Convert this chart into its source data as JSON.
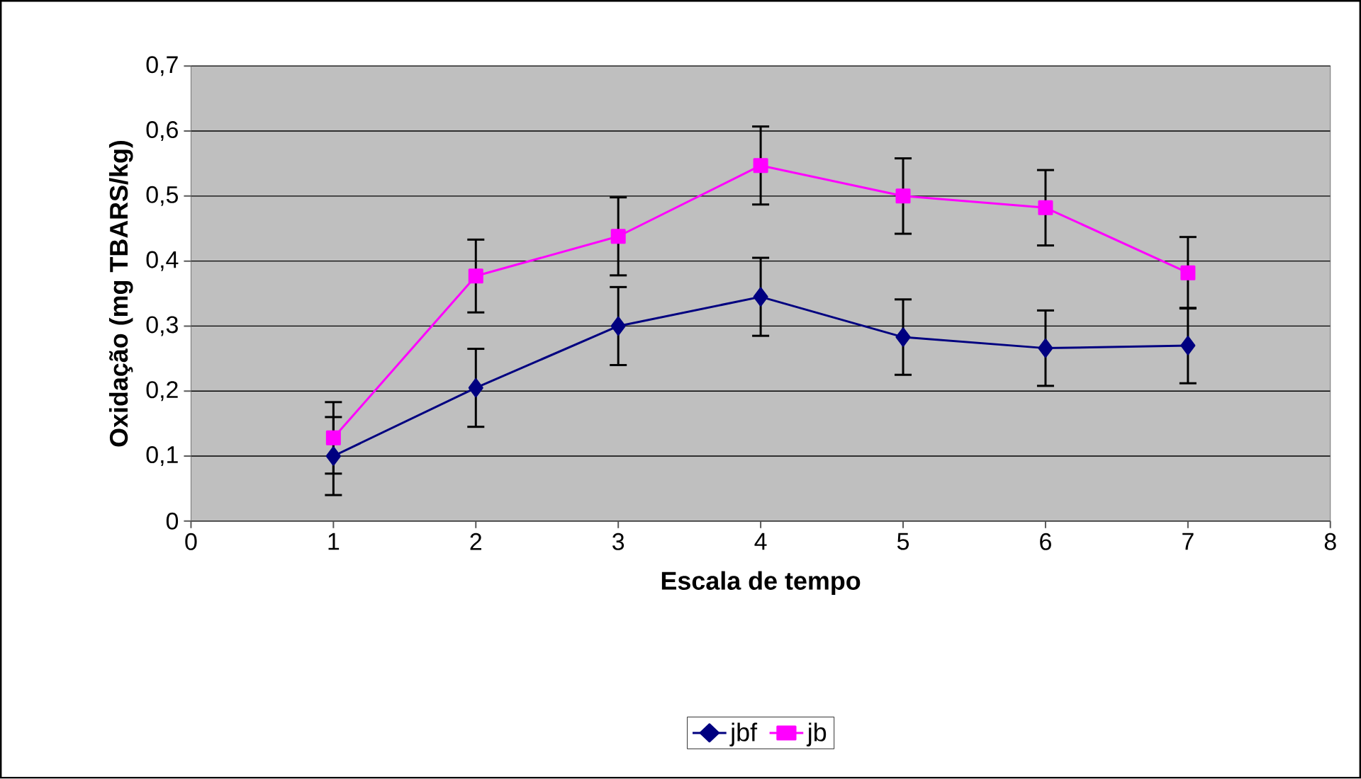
{
  "chart_data": {
    "type": "line",
    "xlabel": "Escala de tempo",
    "ylabel": "Oxidação (mg TBARS/kg)",
    "x": [
      1,
      2,
      3,
      4,
      5,
      6,
      7
    ],
    "series": [
      {
        "name": "jbf",
        "color": "#000080",
        "marker": "diamond",
        "values": [
          0.1,
          0.205,
          0.3,
          0.345,
          0.283,
          0.266,
          0.27
        ],
        "errors": [
          0.06,
          0.06,
          0.06,
          0.06,
          0.058,
          0.058,
          0.058
        ]
      },
      {
        "name": "jb",
        "color": "#ff00ff",
        "marker": "square",
        "values": [
          0.128,
          0.377,
          0.438,
          0.547,
          0.5,
          0.482,
          0.382
        ],
        "errors": [
          0.055,
          0.056,
          0.06,
          0.06,
          0.058,
          0.058,
          0.055
        ]
      }
    ],
    "xlim": [
      0,
      8
    ],
    "xticks": [
      0,
      1,
      2,
      3,
      4,
      5,
      6,
      7,
      8
    ],
    "ylim": [
      0,
      0.7
    ],
    "yticks": [
      {
        "value": 0,
        "label": "0"
      },
      {
        "value": 0.1,
        "label": "0,1"
      },
      {
        "value": 0.2,
        "label": "0,2"
      },
      {
        "value": 0.3,
        "label": "0,3"
      },
      {
        "value": 0.4,
        "label": "0,4"
      },
      {
        "value": 0.5,
        "label": "0,5"
      },
      {
        "value": 0.6,
        "label": "0,6"
      },
      {
        "value": 0.7,
        "label": "0,7"
      }
    ],
    "grid": "y",
    "legend": "bottom"
  }
}
